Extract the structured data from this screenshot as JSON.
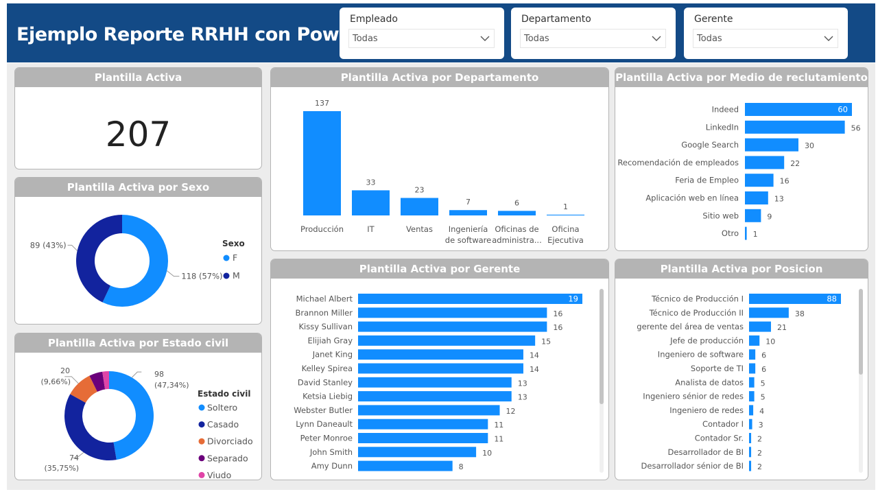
{
  "report": {
    "title": "Ejemplo Reporte RRHH con Power BI"
  },
  "slicers": [
    {
      "label": "Empleado",
      "value": "Todas"
    },
    {
      "label": "Departamento",
      "value": "Todas"
    },
    {
      "label": "Gerente",
      "value": "Todas"
    }
  ],
  "kpi": {
    "title": "Plantilla Activa",
    "value": "207"
  },
  "colors": {
    "primary": "#118dff",
    "navy": "#12239e",
    "orange": "#e66c37",
    "purple": "#6b007b",
    "pink": "#e044a7",
    "header": "#134a86",
    "card_head": "#b4b4b4"
  },
  "chart_data": [
    {
      "id": "sexo",
      "type": "pie",
      "title": "Plantilla Activa por Sexo",
      "legend_title": "Sexo",
      "legend_position": "right",
      "categories": [
        "F",
        "M"
      ],
      "values": [
        118,
        89
      ],
      "labels": [
        "118 (57%)",
        "89 (43%)"
      ],
      "colors": [
        "#118dff",
        "#12239e"
      ]
    },
    {
      "id": "estado",
      "type": "pie",
      "title": "Plantilla Activa por Estado civil",
      "legend_title": "Estado civil",
      "legend_position": "right",
      "categories": [
        "Soltero",
        "Casado",
        "Divorciado",
        "Separado",
        "Viudo"
      ],
      "values": [
        98,
        74,
        20,
        10,
        5
      ],
      "labels": [
        {
          "value": "98",
          "pct": "(47,34%)"
        },
        {
          "value": "74",
          "pct": "(35,75%)"
        },
        {
          "value": "20",
          "pct": "(9,66%)"
        }
      ],
      "colors": [
        "#118dff",
        "#12239e",
        "#e66c37",
        "#6b007b",
        "#e044a7"
      ]
    },
    {
      "id": "departamento",
      "type": "bar",
      "title": "Plantilla Activa por Departamento",
      "categories": [
        [
          "Producción"
        ],
        [
          "IT"
        ],
        [
          "Ventas"
        ],
        [
          "Ingeniería",
          "de software"
        ],
        [
          "Oficinas de",
          "administra..."
        ],
        [
          "Oficina",
          "Ejecutiva"
        ]
      ],
      "values": [
        137,
        33,
        23,
        7,
        6,
        1
      ],
      "xlabel": "",
      "ylabel": "",
      "ylim": [
        0,
        137
      ]
    },
    {
      "id": "reclutamiento",
      "type": "bar",
      "orientation": "horizontal",
      "title": "Plantilla Activa por Medio de reclutamiento",
      "categories": [
        "Indeed",
        "LinkedIn",
        "Google Search",
        "Recomendación de empleados",
        "Feria de Empleo",
        "Aplicación web en línea",
        "Sitio web",
        "Otro"
      ],
      "values": [
        60,
        56,
        30,
        22,
        16,
        13,
        9,
        1
      ],
      "xlim": [
        0,
        60
      ]
    },
    {
      "id": "gerente",
      "type": "bar",
      "orientation": "horizontal",
      "title": "Plantilla Activa por Gerente",
      "categories": [
        "Michael Albert",
        "Brannon Miller",
        "Kissy Sullivan",
        "Elijiah Gray",
        "Janet King",
        "Kelley Spirea",
        "David Stanley",
        "Ketsia Liebig",
        "Webster Butler",
        "Lynn Daneault",
        "Peter Monroe",
        "John Smith",
        "Amy Dunn"
      ],
      "values": [
        19,
        16,
        16,
        15,
        14,
        14,
        13,
        13,
        12,
        11,
        11,
        10,
        8
      ],
      "xlim": [
        0,
        19
      ]
    },
    {
      "id": "posicion",
      "type": "bar",
      "orientation": "horizontal",
      "title": "Plantilla Activa por Posicion",
      "categories": [
        "Técnico de Producción I",
        "Técnico de Producción II",
        "gerente del área de ventas",
        "Jefe de producción",
        "Ingeniero de software",
        "Soporte de TI",
        "Analista de datos",
        "Ingeniero sénior de redes",
        "Ingeniero de redes",
        "Contador I",
        "Contador Sr.",
        "Desarrollador de BI",
        "Desarrollador sénior de BI"
      ],
      "values": [
        88,
        38,
        21,
        10,
        6,
        6,
        5,
        5,
        4,
        3,
        2,
        2,
        2
      ],
      "xlim": [
        0,
        88
      ]
    }
  ]
}
